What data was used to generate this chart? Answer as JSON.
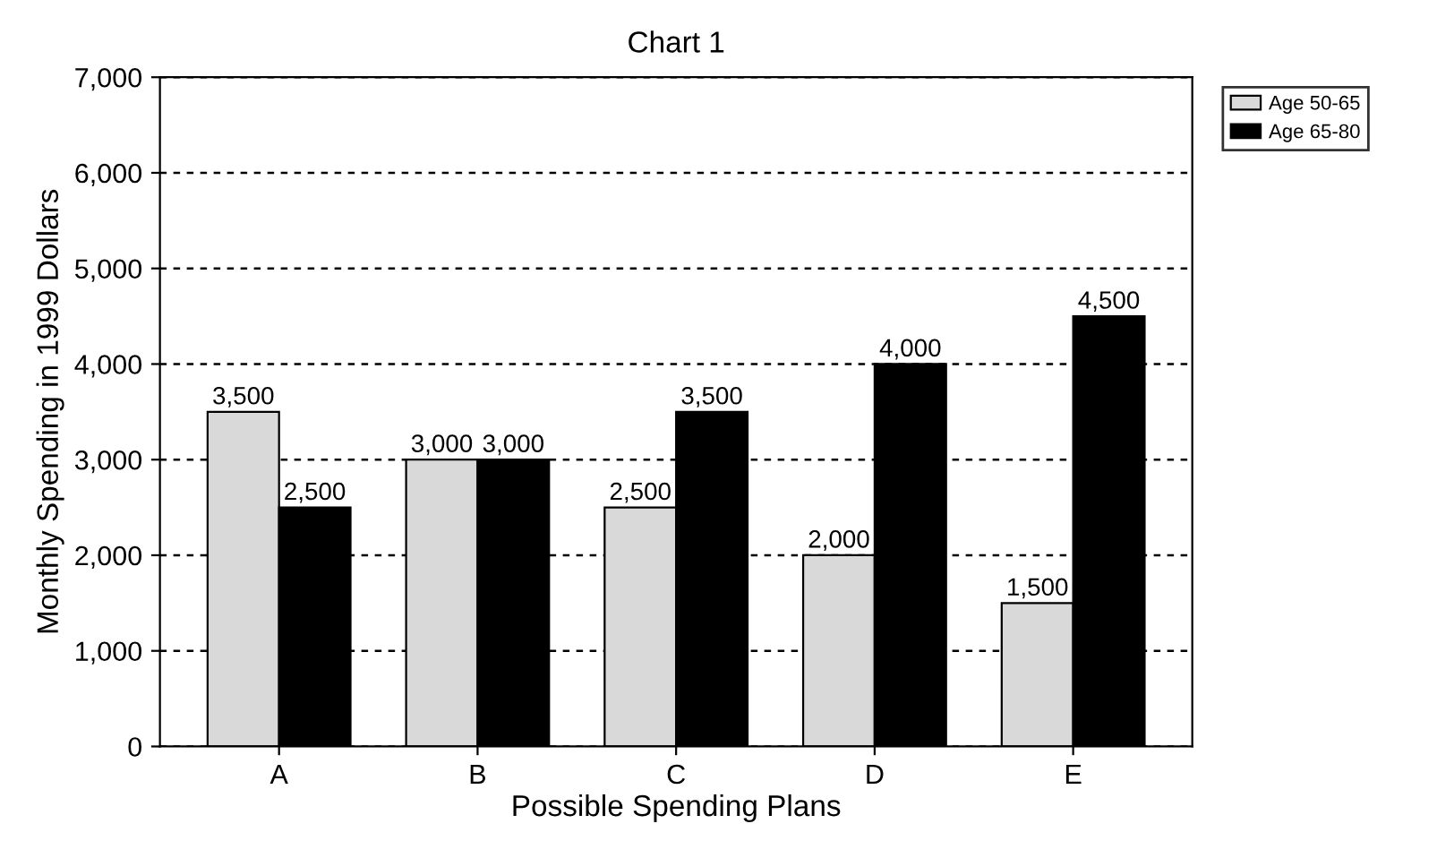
{
  "chart_data": {
    "type": "bar",
    "title": "Chart 1",
    "xlabel": "Possible Spending Plans",
    "ylabel": "Monthly Spending in 1999 Dollars",
    "categories": [
      "A",
      "B",
      "C",
      "D",
      "E"
    ],
    "series": [
      {
        "name": "Age 50-65",
        "color": "#d9d9d9",
        "values": [
          3500,
          3000,
          2500,
          2000,
          1500
        ],
        "value_labels": [
          "3,500",
          "3,000",
          "2,500",
          "2,000",
          "1,500"
        ]
      },
      {
        "name": "Age 65-80",
        "color": "#000000",
        "values": [
          2500,
          3000,
          3500,
          4000,
          4500
        ],
        "value_labels": [
          "2,500",
          "3,000",
          "3,500",
          "4,000",
          "4,500"
        ]
      }
    ],
    "ylim": [
      0,
      7000
    ],
    "yticks": [
      {
        "value": 0,
        "label": "0"
      },
      {
        "value": 1000,
        "label": "1,000"
      },
      {
        "value": 2000,
        "label": "2,000"
      },
      {
        "value": 3000,
        "label": "3,000"
      },
      {
        "value": 4000,
        "label": "4,000"
      },
      {
        "value": 5000,
        "label": "5,000"
      },
      {
        "value": 6000,
        "label": "6,000"
      },
      {
        "value": 7000,
        "label": "7,000"
      }
    ],
    "grid": "y",
    "legend": "right"
  }
}
